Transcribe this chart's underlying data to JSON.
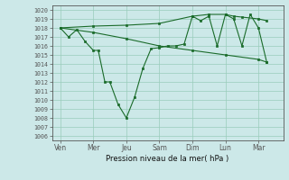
{
  "title": "Pression niveau de la mer( hPa )",
  "background_color": "#cce8e8",
  "grid_color": "#99ccbb",
  "line_color": "#1a6b2a",
  "ylim": [
    1005.5,
    1020.5
  ],
  "yticks": [
    1006,
    1007,
    1008,
    1009,
    1010,
    1011,
    1012,
    1013,
    1014,
    1015,
    1016,
    1017,
    1018,
    1019,
    1020
  ],
  "xtick_labels": [
    "Ven",
    "Mer",
    "Jeu",
    "Sam",
    "Dim",
    "Lun",
    "Mar"
  ],
  "xtick_positions": [
    0,
    2,
    4,
    6,
    8,
    10,
    12
  ],
  "series1_x": [
    0,
    0.5,
    1,
    1.5,
    2,
    2.3,
    2.7,
    3.0,
    3.5,
    4.0,
    4.5,
    5.0,
    5.5,
    6,
    6.5,
    7,
    7.5,
    8,
    8.5,
    9,
    9.5,
    10,
    10.5,
    11,
    11.5,
    12,
    12.5
  ],
  "series1_y": [
    1018,
    1017,
    1017.8,
    1016.5,
    1015.5,
    1015.5,
    1012,
    1012,
    1009.5,
    1008.0,
    1010.3,
    1013.5,
    1015.7,
    1015.8,
    1016.0,
    1016.0,
    1016.2,
    1019.3,
    1018.8,
    1019.3,
    1016.0,
    1019.5,
    1019.0,
    1016.0,
    1019.5,
    1018.0,
    1014.2
  ],
  "series2_x": [
    0,
    2,
    4,
    6,
    8,
    9,
    10,
    10.5,
    11,
    12,
    12.5
  ],
  "series2_y": [
    1018,
    1018.2,
    1018.3,
    1018.5,
    1019.3,
    1019.5,
    1019.5,
    1019.3,
    1019.2,
    1019.0,
    1018.8
  ],
  "series3_x": [
    0,
    2,
    4,
    6,
    8,
    10,
    12,
    12.5
  ],
  "series3_y": [
    1018,
    1017.5,
    1016.8,
    1016.0,
    1015.5,
    1015.0,
    1014.5,
    1014.2
  ]
}
